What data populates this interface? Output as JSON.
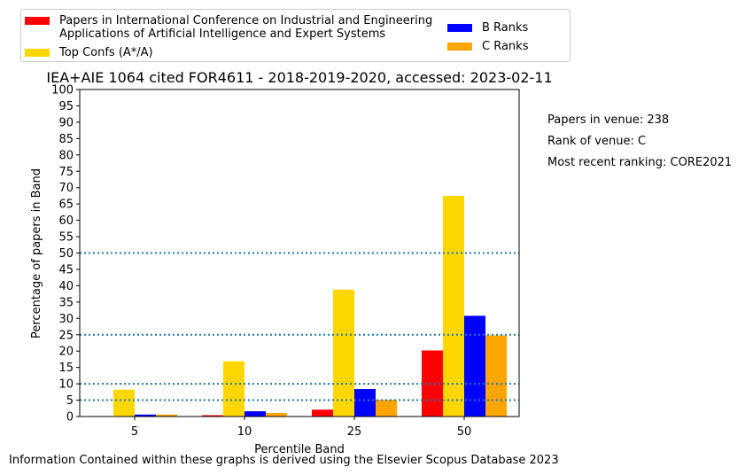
{
  "chart_data": {
    "type": "bar",
    "title": "IEA+AIE 1064 cited FOR4611 - 2018-2019-2020, accessed: 2023-02-11",
    "xlabel": "Percentile Band",
    "ylabel": "Percentage of papers in Band",
    "categories": [
      "5",
      "10",
      "25",
      "50"
    ],
    "ylim": [
      0,
      100
    ],
    "yticks": [
      0,
      5,
      10,
      15,
      20,
      25,
      30,
      35,
      40,
      45,
      50,
      55,
      60,
      65,
      70,
      75,
      80,
      85,
      90,
      95,
      100
    ],
    "reference_lines": [
      5,
      10,
      25,
      50
    ],
    "series": [
      {
        "name": "Papers in International Conference on Industrial and Engineering\nApplications of Artificial Intelligence and Expert Systems",
        "color": "#ff0000",
        "values": [
          0,
          0.4,
          2.1,
          20.2
        ]
      },
      {
        "name": "Top Confs (A*/A)",
        "color": "#ffd700",
        "values": [
          8.2,
          16.9,
          38.8,
          67.5
        ]
      },
      {
        "name": "B Ranks",
        "color": "#0000ff",
        "values": [
          0.6,
          1.6,
          8.4,
          30.8
        ]
      },
      {
        "name": "C Ranks",
        "color": "#ffa500",
        "values": [
          0.6,
          1.1,
          5.1,
          24.8
        ]
      }
    ],
    "grid": false,
    "legend_position": "top"
  },
  "side_info": {
    "papers_in_venue": "Papers in venue: 238",
    "rank_of_venue": "Rank of venue: C",
    "most_recent_ranking": "Most recent ranking: CORE2021"
  },
  "footer": "Information Contained within these graphs is derived using the Elsevier Scopus Database 2023"
}
